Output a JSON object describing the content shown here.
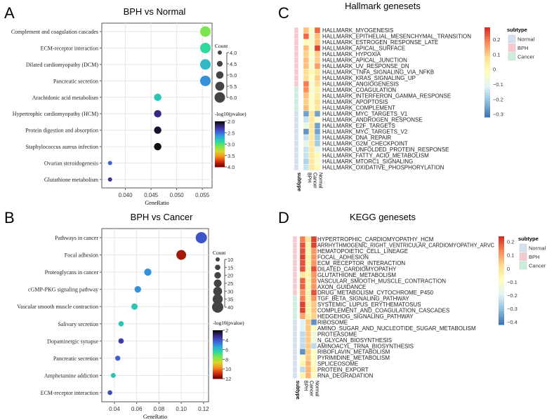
{
  "panel_letters": [
    "A",
    "B",
    "C",
    "D"
  ],
  "chart_data": [
    {
      "type": "scatter",
      "title": "BPH vs Normal",
      "xlabel": "GeneRatio",
      "xlim": [
        0.0354,
        0.0569
      ],
      "xticks": [
        0.04,
        0.045,
        0.05,
        0.055
      ],
      "xtick_labels": [
        "0.040",
        "0.045",
        "0.050",
        "0.055"
      ],
      "grid": true,
      "categories": [
        "Complement and coagulation cascades",
        "ECM-receptor interaction",
        "Dilated cardiomyopathy (DCM)",
        "Pancreatic secretion",
        "Arachidonic acid metabolism",
        "Hypertrophic cardiomyopathy (HCM)",
        "Protein digestion and absorption",
        "Staphylococcus aureus infection",
        "Ovarian steroidogenesis",
        "Glutathione metabolism"
      ],
      "gene_ratio": [
        0.0556,
        0.0556,
        0.0556,
        0.0556,
        0.0463,
        0.0463,
        0.0463,
        0.0463,
        0.037,
        0.037
      ],
      "count": [
        6,
        6,
        6,
        6,
        5,
        5,
        5,
        5,
        4,
        4
      ],
      "neg_log10_pvalue": [
        3.1,
        2.9,
        2.75,
        2.6,
        2.8,
        2.2,
        2.05,
        2.0,
        2.45,
        2.25
      ],
      "size_legend": {
        "title": "Count",
        "values": [
          4.0,
          4.5,
          5.0,
          5.5,
          6.0
        ],
        "labels": [
          "4.0",
          "4.5",
          "5.0",
          "5.5",
          "6.0"
        ]
      },
      "color_legend": {
        "title": "-log10(pvalue)",
        "range": [
          2,
          4
        ],
        "labels": [
          "2.0",
          "2.5",
          "3.0",
          "3.5",
          "4.0"
        ]
      },
      "legend_placement": "right"
    },
    {
      "type": "scatter",
      "title": "BPH vs Cancer",
      "xlabel": "GeneRatio",
      "xlim": [
        0.0287,
        0.1245
      ],
      "xticks": [
        0.04,
        0.06,
        0.08,
        0.1,
        0.12
      ],
      "xtick_labels": [
        "0.04",
        "0.06",
        "0.08",
        "0.10",
        "0.12"
      ],
      "grid": true,
      "categories": [
        "Pathways in cancer",
        "Focal adhesion",
        "Proteoglycans in cancer",
        "cGMP-PKG signaling pathway",
        "Vascular smooth muscle contraction",
        "Salivary secretion",
        "Dopaminergic synapse",
        "Pancreatic secretion",
        "Amphetamine addiction",
        "ECM-receptor interaction"
      ],
      "gene_ratio": [
        0.118,
        0.1,
        0.07,
        0.061,
        0.058,
        0.046,
        0.046,
        0.043,
        0.039,
        0.036
      ],
      "count": [
        40,
        34,
        23,
        20,
        19,
        15,
        15,
        14,
        13,
        12
      ],
      "neg_log10_pvalue": [
        4.0,
        11.5,
        5.0,
        5.0,
        6.0,
        6.0,
        3.5,
        4.2,
        6.0,
        3.8
      ],
      "size_legend": {
        "title": "Count",
        "values": [
          10,
          15,
          20,
          25,
          30,
          35,
          40
        ],
        "labels": [
          "10",
          "15",
          "20",
          "25",
          "30",
          "35",
          "40"
        ]
      },
      "color_legend": {
        "title": "-log10(pvalue)",
        "range": [
          2,
          12
        ],
        "labels": [
          "2",
          "4",
          "6",
          "8",
          "10",
          "12"
        ]
      },
      "legend_placement": "right"
    },
    {
      "type": "heatmap",
      "title": "Hallmark genesets",
      "columns": [
        "BPH",
        "Cancer",
        "Normal"
      ],
      "annotation_label": "subtype",
      "rows": [
        "HALLMARK_MYOGENESIS",
        "HALLMARK_EPITHELIAL_MESENCHYMAL_TRANSITION",
        "HALLMARK_ESTROGEN_RESPONSE_LATE",
        "HALLMARK_APICAL_SURFACE",
        "HALLMARK_HYPOXIA",
        "HALLMARK_APICAL_JUNCTION",
        "HALLMARK_UV_RESPONSE_DN",
        "HALLMARK_TNFA_SIGNALING_VIA_NFKB",
        "HALLMARK_KRAS_SIGNALING_UP",
        "HALLMARK_ANGIOGENESIS",
        "HALLMARK_COAGULATION",
        "HALLMARK_INTERFERON_GAMMA_RESPONSE",
        "HALLMARK_APOPTOSIS",
        "HALLMARK_COMPLEMENT",
        "HALLMARK_MYC_TARGETS_V1",
        "HALLMARK_ANDROGEN_RESPONSE",
        "HALLMARK_E2F_TARGETS",
        "HALLMARK_MYC_TARGETS_V2",
        "HALLMARK_DNA_REPAIR",
        "HALLMARK_G2M_CHECKPOINT",
        "HALLMARK_UNFOLDED_PROTEIN_RESPONSE",
        "HALLMARK_FATTY_ACID_METABOLISM",
        "HALLMARK_MTORC1_SIGNALING",
        "HALLMARK_OXIDATIVE_PHOSPHORYLATION"
      ],
      "row_subtype": [
        "BPH",
        "BPH",
        "BPH",
        "BPH",
        "BPH",
        "BPH",
        "BPH",
        "BPH",
        "BPH",
        "BPH",
        "Cancer",
        "Cancer",
        "Cancer",
        "Cancer",
        "Normal",
        "Normal",
        "Normal",
        "Normal",
        "Normal",
        "Normal",
        "Normal",
        "Normal",
        "Normal",
        "Normal"
      ],
      "values": [
        [
          0.12,
          -0.05,
          0.22
        ],
        [
          0.22,
          -0.05,
          0.12
        ],
        [
          0.0,
          -0.05,
          0.12
        ],
        [
          0.12,
          -0.05,
          0.26
        ],
        [
          0.1,
          -0.03,
          0.1
        ],
        [
          0.12,
          -0.05,
          0.1
        ],
        [
          0.12,
          -0.05,
          0.16
        ],
        [
          0.08,
          0.0,
          0.06
        ],
        [
          0.08,
          -0.03,
          0.1
        ],
        [
          0.2,
          -0.05,
          0.08
        ],
        [
          0.18,
          -0.05,
          0.03
        ],
        [
          0.12,
          -0.03,
          0.05
        ],
        [
          0.1,
          -0.03,
          0.08
        ],
        [
          0.12,
          -0.02,
          0.06
        ],
        [
          -0.26,
          0.05,
          -0.26
        ],
        [
          -0.15,
          0.05,
          -0.05
        ],
        [
          -0.08,
          0.05,
          -0.26
        ],
        [
          -0.28,
          0.05,
          -0.26
        ],
        [
          -0.15,
          0.05,
          -0.2
        ],
        [
          -0.1,
          0.05,
          -0.2
        ],
        [
          -0.15,
          0.05,
          -0.1
        ],
        [
          -0.15,
          0.05,
          0.0
        ],
        [
          -0.18,
          0.05,
          -0.05
        ],
        [
          -0.15,
          0.05,
          0.0
        ]
      ],
      "color_range": [
        -0.32,
        0.28
      ],
      "colorbar_ticks": [
        0.2,
        0.1,
        0,
        -0.1,
        -0.2,
        -0.3
      ],
      "colorbar_labels": [
        "0.2",
        "0.1",
        "0",
        "−0.1",
        "−0.2",
        "−0.3"
      ],
      "subtype_legend": {
        "title": "subtype",
        "items": [
          {
            "label": "Normal",
            "color": "#d4dff0"
          },
          {
            "label": "BPH",
            "color": "#f6c9cf"
          },
          {
            "label": "Cancer",
            "color": "#cdeedd"
          }
        ]
      }
    },
    {
      "type": "heatmap",
      "title": "KEGG genesets",
      "columns": [
        "BPH",
        "Cancer",
        "Normal"
      ],
      "annotation_label": "subtype",
      "rows": [
        "HYPERTROPHIC_CARDIOMYOPATHY_HCM",
        "ARRHYTHMOGENIC_RIGHT_VENTRICULAR_CARDIOMYOPATHY_ARVC",
        "HEMATOPOIETIC_CELL_LINEAGE",
        "FOCAL_ADHESION",
        "ECM_RECEPTOR_INTERACTION",
        "DILATED_CARDIOMYOPATHY",
        "GLUTATHIONE_METABOLISM",
        "VASCULAR_SMOOTH_MUSCLE_CONTRACTION",
        "AXON_GUIDANCE",
        "DRUG_METABOLISM_CYTOCHROME_P450",
        "TGF_BETA_SIGNALING_PATHWAY",
        "SYSTEMIC_LUPUS_ERYTHEMATOSUS",
        "COMPLEMENT_AND_COAGULATION_CASCADES",
        "HEDGEHOG_SIGNALING_PATHWAY",
        "RIBOSOME",
        "AMINO_SUGAR_AND_NUCLEOTIDE_SUGAR_METABOLISM",
        "PROTEASOME",
        "N_GLYCAN_BIOSYNTHESIS",
        "AMINOACYL_TRNA_BIOSYNTHESIS",
        "RIBOFLAVIN_METABOLISM",
        "PYRIMIDINE_METABOLISM",
        "SPLICEOSOME",
        "PROTEIN_EXPORT",
        "RNA_DEGRADATION"
      ],
      "row_subtype": [
        "BPH",
        "BPH",
        "BPH",
        "BPH",
        "BPH",
        "BPH",
        "BPH",
        "BPH",
        "BPH",
        "BPH",
        "Cancer",
        "Cancer",
        "Cancer",
        "Cancer",
        "Normal",
        "Normal",
        "Normal",
        "Normal",
        "Normal",
        "Normal",
        "Normal",
        "Normal",
        "Normal",
        "Normal"
      ],
      "values": [
        [
          0.15,
          0.0,
          0.22
        ],
        [
          0.2,
          -0.05,
          0.22
        ],
        [
          0.2,
          -0.05,
          0.12
        ],
        [
          0.22,
          -0.05,
          0.12
        ],
        [
          0.2,
          -0.05,
          0.12
        ],
        [
          0.2,
          -0.05,
          0.2
        ],
        [
          0.0,
          -0.05,
          0.12
        ],
        [
          0.18,
          -0.05,
          0.12
        ],
        [
          0.18,
          -0.05,
          0.12
        ],
        [
          0.12,
          -0.05,
          0.2
        ],
        [
          0.15,
          -0.05,
          0.12
        ],
        [
          0.22,
          -0.03,
          0.05
        ],
        [
          0.22,
          -0.05,
          0.06
        ],
        [
          0.1,
          -0.03,
          0.04
        ],
        [
          -0.2,
          0.05,
          -0.38
        ],
        [
          -0.2,
          0.05,
          -0.1
        ],
        [
          -0.25,
          0.05,
          -0.15
        ],
        [
          -0.25,
          0.05,
          -0.15
        ],
        [
          -0.25,
          0.05,
          -0.25
        ],
        [
          -0.38,
          0.05,
          -0.1
        ],
        [
          -0.1,
          0.05,
          -0.1
        ],
        [
          -0.05,
          0.08,
          -0.1
        ],
        [
          -0.25,
          0.08,
          -0.05
        ],
        [
          -0.05,
          0.08,
          -0.1
        ]
      ],
      "color_range": [
        -0.42,
        0.24
      ],
      "colorbar_ticks": [
        0.2,
        0.1,
        0,
        -0.1,
        -0.2,
        -0.3,
        -0.4
      ],
      "colorbar_labels": [
        "0.2",
        "0.1",
        "0",
        "−0.1",
        "−0.2",
        "−0.3",
        "−0.4"
      ],
      "subtype_legend": {
        "title": "subtype",
        "items": [
          {
            "label": "Normal",
            "color": "#d4dff0"
          },
          {
            "label": "BPH",
            "color": "#f6c9cf"
          },
          {
            "label": "Cancer",
            "color": "#cdeedd"
          }
        ]
      }
    }
  ]
}
